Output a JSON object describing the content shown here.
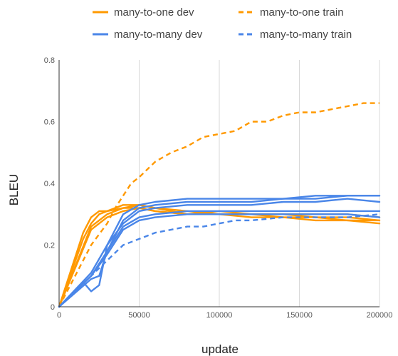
{
  "chart_data": {
    "type": "line",
    "title": "",
    "xlabel": "update",
    "ylabel": "BLEU",
    "xlim": [
      0,
      200000
    ],
    "ylim": [
      0,
      0.8
    ],
    "x_ticks": [
      0,
      50000,
      100000,
      150000,
      200000
    ],
    "y_ticks": [
      0,
      0.2,
      0.4,
      0.6,
      0.8
    ],
    "x_tick_labels": [
      "0",
      "50000",
      "100000",
      "150000",
      "200000"
    ],
    "y_tick_labels": [
      "0",
      "0.2",
      "0.4",
      "0.6",
      "0.8"
    ],
    "grid": "vertical",
    "legend_position": "top",
    "legend": [
      {
        "label": "many-to-one dev",
        "color": "#FF9900",
        "style": "solid"
      },
      {
        "label": "many-to-one train",
        "color": "#FF9900",
        "style": "dashed"
      },
      {
        "label": "many-to-many dev",
        "color": "#4A86E8",
        "style": "solid"
      },
      {
        "label": "many-to-many train",
        "color": "#4A86E8",
        "style": "dashed"
      }
    ],
    "series": [
      {
        "group": "many-to-one dev",
        "color": "#FF9900",
        "style": "solid",
        "points": [
          [
            0,
            0
          ],
          [
            15000,
            0.24
          ],
          [
            20000,
            0.29
          ],
          [
            25000,
            0.31
          ],
          [
            30000,
            0.31
          ],
          [
            40000,
            0.33
          ],
          [
            50000,
            0.33
          ],
          [
            60000,
            0.32
          ],
          [
            80000,
            0.31
          ],
          [
            100000,
            0.3
          ],
          [
            120000,
            0.3
          ],
          [
            140000,
            0.3
          ],
          [
            160000,
            0.3
          ],
          [
            180000,
            0.3
          ],
          [
            200000,
            0.29
          ]
        ]
      },
      {
        "group": "many-to-one dev",
        "color": "#FF9900",
        "style": "solid",
        "points": [
          [
            0,
            0
          ],
          [
            15000,
            0.22
          ],
          [
            20000,
            0.27
          ],
          [
            25000,
            0.3
          ],
          [
            30000,
            0.31
          ],
          [
            40000,
            0.32
          ],
          [
            50000,
            0.33
          ],
          [
            60000,
            0.32
          ],
          [
            80000,
            0.3
          ],
          [
            100000,
            0.3
          ],
          [
            120000,
            0.3
          ],
          [
            140000,
            0.29
          ],
          [
            160000,
            0.29
          ],
          [
            180000,
            0.28
          ],
          [
            200000,
            0.28
          ]
        ]
      },
      {
        "group": "many-to-one dev",
        "color": "#FF9900",
        "style": "solid",
        "points": [
          [
            0,
            0
          ],
          [
            20000,
            0.26
          ],
          [
            30000,
            0.3
          ],
          [
            40000,
            0.32
          ],
          [
            50000,
            0.32
          ],
          [
            60000,
            0.31
          ],
          [
            80000,
            0.3
          ],
          [
            100000,
            0.3
          ],
          [
            120000,
            0.29
          ],
          [
            140000,
            0.29
          ],
          [
            160000,
            0.28
          ],
          [
            180000,
            0.28
          ],
          [
            200000,
            0.27
          ]
        ]
      },
      {
        "group": "many-to-one dev",
        "color": "#FF9900",
        "style": "solid",
        "points": [
          [
            0,
            0
          ],
          [
            20000,
            0.25
          ],
          [
            30000,
            0.29
          ],
          [
            40000,
            0.31
          ],
          [
            50000,
            0.32
          ],
          [
            60000,
            0.31
          ],
          [
            80000,
            0.3
          ],
          [
            100000,
            0.31
          ],
          [
            120000,
            0.3
          ],
          [
            140000,
            0.3
          ],
          [
            160000,
            0.29
          ],
          [
            180000,
            0.29
          ],
          [
            200000,
            0.28
          ]
        ]
      },
      {
        "group": "many-to-one train",
        "color": "#FF9900",
        "style": "dashed",
        "points": [
          [
            0,
            0
          ],
          [
            10000,
            0.1
          ],
          [
            20000,
            0.2
          ],
          [
            30000,
            0.27
          ],
          [
            35000,
            0.32
          ],
          [
            40000,
            0.36
          ],
          [
            45000,
            0.4
          ],
          [
            50000,
            0.42
          ],
          [
            60000,
            0.47
          ],
          [
            70000,
            0.5
          ],
          [
            80000,
            0.52
          ],
          [
            90000,
            0.55
          ],
          [
            100000,
            0.56
          ],
          [
            110000,
            0.57
          ],
          [
            120000,
            0.6
          ],
          [
            130000,
            0.6
          ],
          [
            140000,
            0.62
          ],
          [
            150000,
            0.63
          ],
          [
            160000,
            0.63
          ],
          [
            170000,
            0.64
          ],
          [
            180000,
            0.65
          ],
          [
            190000,
            0.66
          ],
          [
            200000,
            0.66
          ]
        ]
      },
      {
        "group": "many-to-many dev",
        "color": "#4A86E8",
        "style": "solid",
        "points": [
          [
            0,
            0
          ],
          [
            15000,
            0.08
          ],
          [
            20000,
            0.05
          ],
          [
            25000,
            0.07
          ],
          [
            30000,
            0.2
          ],
          [
            40000,
            0.3
          ],
          [
            50000,
            0.33
          ],
          [
            60000,
            0.34
          ],
          [
            80000,
            0.35
          ],
          [
            100000,
            0.35
          ],
          [
            120000,
            0.35
          ],
          [
            140000,
            0.35
          ],
          [
            160000,
            0.36
          ],
          [
            180000,
            0.36
          ],
          [
            200000,
            0.36
          ]
        ]
      },
      {
        "group": "many-to-many dev",
        "color": "#4A86E8",
        "style": "solid",
        "points": [
          [
            0,
            0
          ],
          [
            20000,
            0.09
          ],
          [
            25000,
            0.1
          ],
          [
            30000,
            0.18
          ],
          [
            40000,
            0.28
          ],
          [
            50000,
            0.32
          ],
          [
            60000,
            0.33
          ],
          [
            80000,
            0.34
          ],
          [
            100000,
            0.34
          ],
          [
            120000,
            0.34
          ],
          [
            140000,
            0.35
          ],
          [
            160000,
            0.35
          ],
          [
            180000,
            0.36
          ],
          [
            200000,
            0.36
          ]
        ]
      },
      {
        "group": "many-to-many dev",
        "color": "#4A86E8",
        "style": "solid",
        "points": [
          [
            0,
            0
          ],
          [
            20000,
            0.11
          ],
          [
            30000,
            0.2
          ],
          [
            40000,
            0.27
          ],
          [
            50000,
            0.31
          ],
          [
            60000,
            0.32
          ],
          [
            80000,
            0.33
          ],
          [
            100000,
            0.33
          ],
          [
            120000,
            0.33
          ],
          [
            140000,
            0.34
          ],
          [
            160000,
            0.34
          ],
          [
            180000,
            0.35
          ],
          [
            200000,
            0.34
          ]
        ]
      },
      {
        "group": "many-to-many dev",
        "color": "#4A86E8",
        "style": "solid",
        "points": [
          [
            0,
            0
          ],
          [
            20000,
            0.1
          ],
          [
            30000,
            0.18
          ],
          [
            40000,
            0.26
          ],
          [
            50000,
            0.29
          ],
          [
            60000,
            0.3
          ],
          [
            80000,
            0.31
          ],
          [
            100000,
            0.31
          ],
          [
            120000,
            0.31
          ],
          [
            140000,
            0.31
          ],
          [
            160000,
            0.31
          ],
          [
            180000,
            0.31
          ],
          [
            200000,
            0.31
          ]
        ]
      },
      {
        "group": "many-to-many dev",
        "color": "#4A86E8",
        "style": "solid",
        "points": [
          [
            0,
            0
          ],
          [
            20000,
            0.1
          ],
          [
            30000,
            0.17
          ],
          [
            40000,
            0.25
          ],
          [
            50000,
            0.28
          ],
          [
            60000,
            0.29
          ],
          [
            80000,
            0.3
          ],
          [
            100000,
            0.3
          ],
          [
            120000,
            0.3
          ],
          [
            140000,
            0.3
          ],
          [
            160000,
            0.3
          ],
          [
            180000,
            0.3
          ],
          [
            200000,
            0.29
          ]
        ]
      },
      {
        "group": "many-to-many train",
        "color": "#4A86E8",
        "style": "dashed",
        "points": [
          [
            0,
            0
          ],
          [
            10000,
            0.05
          ],
          [
            20000,
            0.1
          ],
          [
            30000,
            0.15
          ],
          [
            40000,
            0.2
          ],
          [
            50000,
            0.22
          ],
          [
            60000,
            0.24
          ],
          [
            70000,
            0.25
          ],
          [
            80000,
            0.26
          ],
          [
            90000,
            0.26
          ],
          [
            100000,
            0.27
          ],
          [
            110000,
            0.28
          ],
          [
            120000,
            0.28
          ],
          [
            140000,
            0.29
          ],
          [
            160000,
            0.29
          ],
          [
            180000,
            0.29
          ],
          [
            200000,
            0.3
          ]
        ]
      }
    ]
  }
}
